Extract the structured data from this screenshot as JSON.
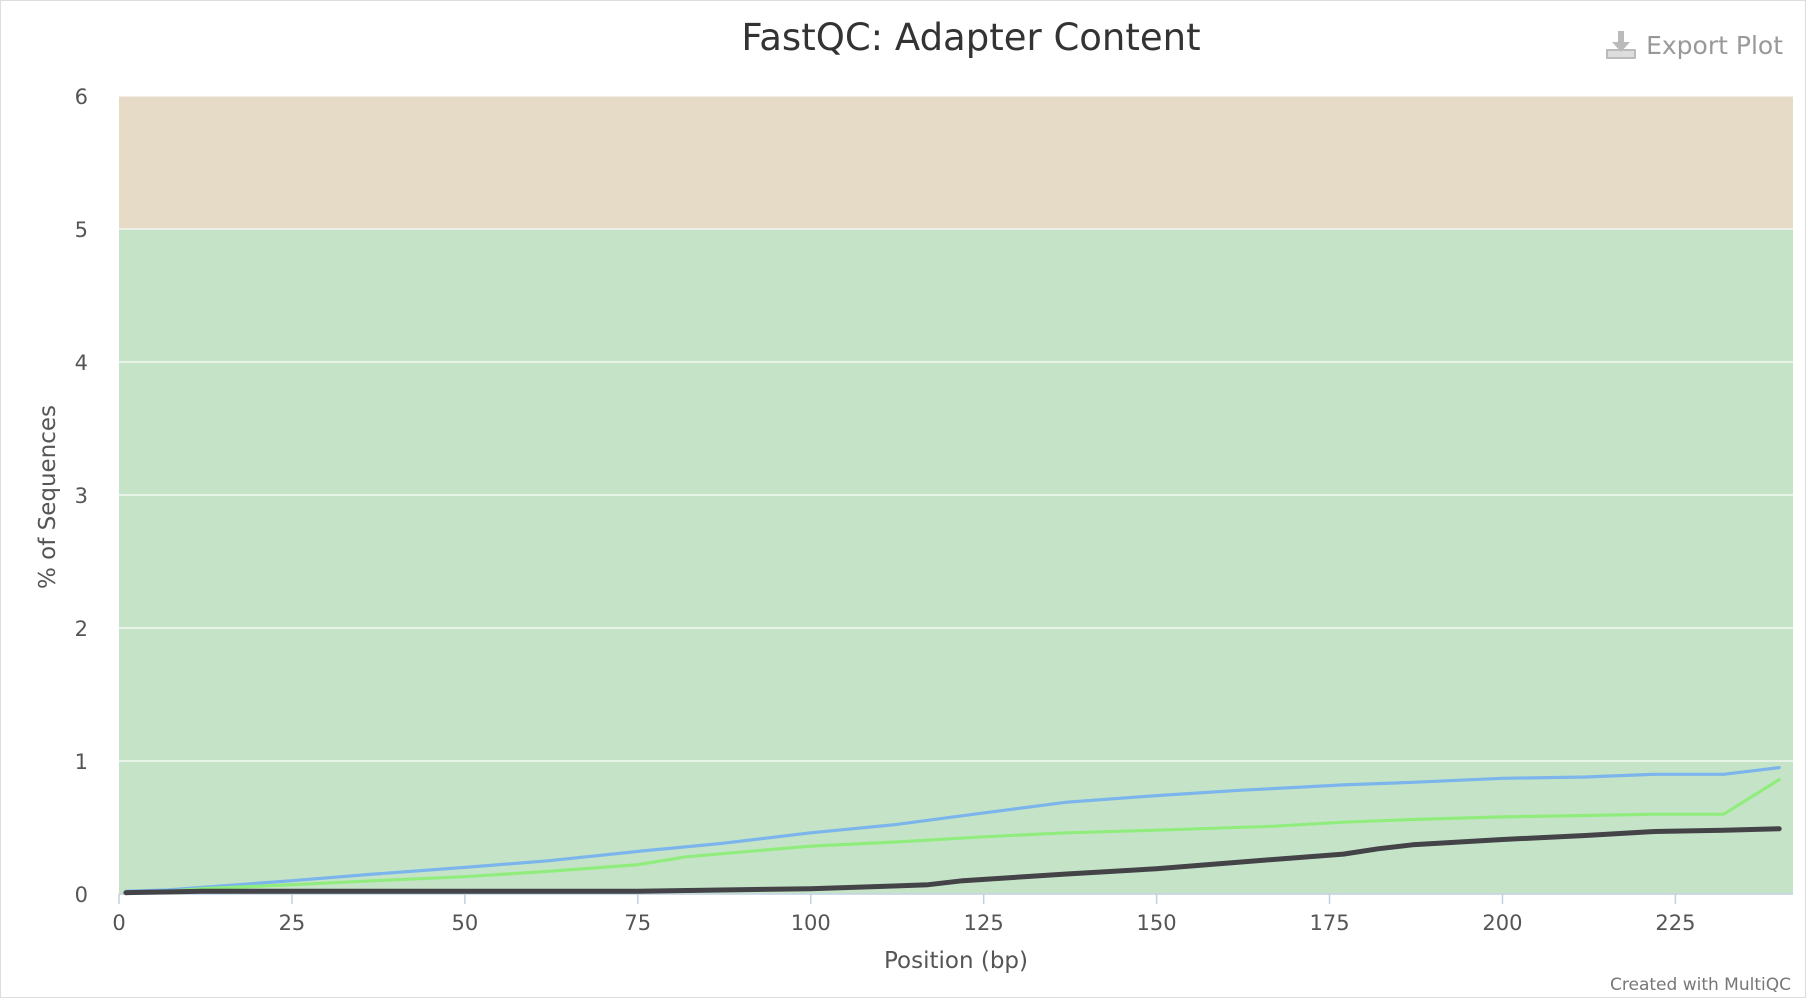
{
  "chart_data": {
    "type": "line",
    "title": "FastQC: Adapter Content",
    "xlabel": "Position (bp)",
    "ylabel": "% of Sequences",
    "xlim": [
      0,
      242
    ],
    "ylim": [
      0,
      6
    ],
    "xticks": [
      0,
      25,
      50,
      75,
      100,
      125,
      150,
      175,
      200,
      225
    ],
    "yticks": [
      0,
      1,
      2,
      3,
      4,
      5,
      6
    ],
    "grid": true,
    "legend": "none",
    "bands": [
      {
        "from": 0,
        "to": 5,
        "color": "#c5e4c7"
      },
      {
        "from": 5,
        "to": 6,
        "color": "#e6dbc6"
      }
    ],
    "series": [
      {
        "color": "#7cb5ec",
        "points": [
          [
            1,
            0.02
          ],
          [
            7,
            0.03
          ],
          [
            12,
            0.05
          ],
          [
            25,
            0.1
          ],
          [
            37,
            0.15
          ],
          [
            50,
            0.2
          ],
          [
            62,
            0.25
          ],
          [
            75,
            0.32
          ],
          [
            87,
            0.38
          ],
          [
            100,
            0.46
          ],
          [
            112,
            0.52
          ],
          [
            125,
            0.61
          ],
          [
            137,
            0.69
          ],
          [
            150,
            0.74
          ],
          [
            162,
            0.78
          ],
          [
            177,
            0.82
          ],
          [
            187,
            0.84
          ],
          [
            200,
            0.87
          ],
          [
            212,
            0.88
          ],
          [
            222,
            0.9
          ],
          [
            232,
            0.9
          ],
          [
            240,
            0.95
          ]
        ]
      },
      {
        "color": "#90ed7d",
        "points": [
          [
            1,
            0.01
          ],
          [
            7,
            0.02
          ],
          [
            12,
            0.04
          ],
          [
            25,
            0.07
          ],
          [
            37,
            0.1
          ],
          [
            50,
            0.13
          ],
          [
            62,
            0.17
          ],
          [
            75,
            0.22
          ],
          [
            82,
            0.28
          ],
          [
            100,
            0.36
          ],
          [
            112,
            0.39
          ],
          [
            125,
            0.43
          ],
          [
            137,
            0.46
          ],
          [
            150,
            0.48
          ],
          [
            167,
            0.51
          ],
          [
            177,
            0.54
          ],
          [
            187,
            0.56
          ],
          [
            200,
            0.58
          ],
          [
            212,
            0.59
          ],
          [
            222,
            0.6
          ],
          [
            232,
            0.6
          ],
          [
            240,
            0.86
          ]
        ]
      },
      {
        "color": "#434348",
        "points": [
          [
            1,
            0.01
          ],
          [
            12,
            0.02
          ],
          [
            25,
            0.02
          ],
          [
            50,
            0.02
          ],
          [
            75,
            0.02
          ],
          [
            87,
            0.03
          ],
          [
            100,
            0.04
          ],
          [
            112,
            0.06
          ],
          [
            117,
            0.07
          ],
          [
            122,
            0.1
          ],
          [
            137,
            0.15
          ],
          [
            150,
            0.19
          ],
          [
            162,
            0.24
          ],
          [
            177,
            0.3
          ],
          [
            182,
            0.34
          ],
          [
            187,
            0.37
          ],
          [
            200,
            0.41
          ],
          [
            212,
            0.44
          ],
          [
            222,
            0.47
          ],
          [
            232,
            0.48
          ],
          [
            240,
            0.49
          ]
        ]
      }
    ]
  },
  "ui": {
    "export_label": "Export Plot",
    "credit": "Created with MultiQC"
  }
}
